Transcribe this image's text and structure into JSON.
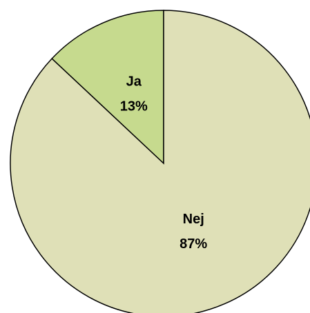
{
  "chart_data": {
    "type": "pie",
    "categories": [
      "Ja",
      "Nej"
    ],
    "values": [
      13,
      87
    ],
    "value_labels": [
      "13%",
      "87%"
    ],
    "colors": [
      "#c6da8e",
      "#dfe0b7"
    ]
  }
}
